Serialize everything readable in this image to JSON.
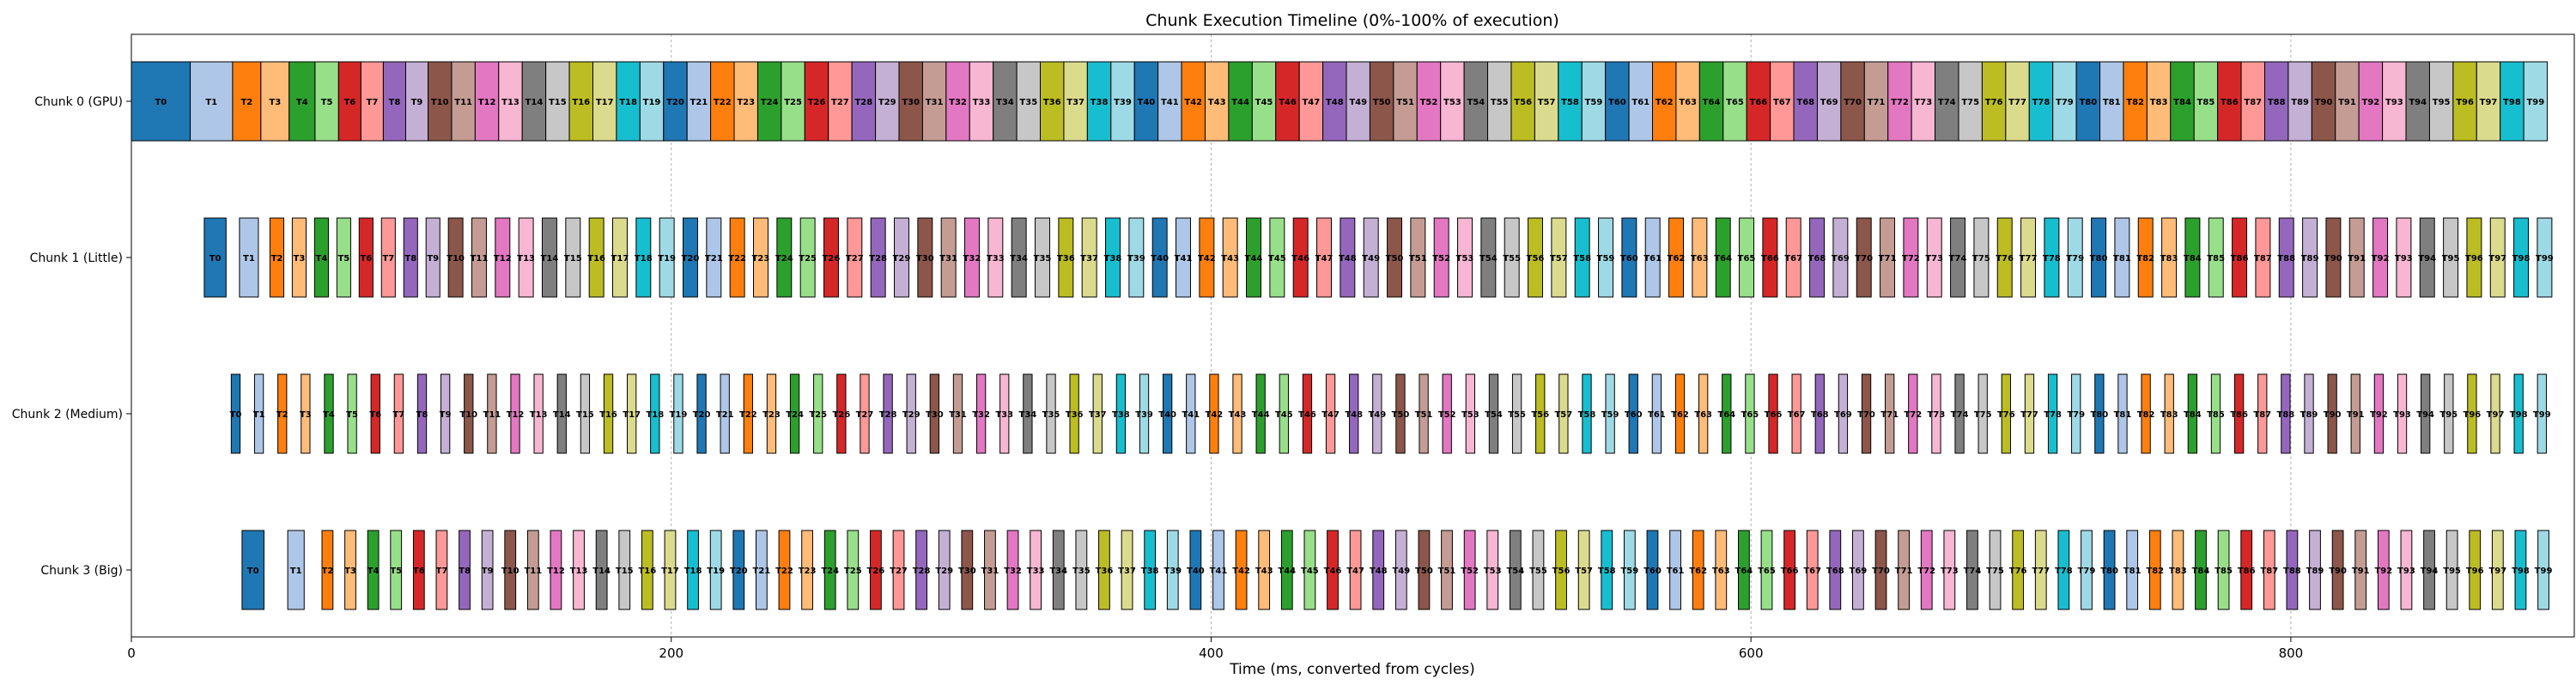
{
  "chart_data": {
    "type": "timeline",
    "title": "Chunk Execution Timeline (0%-100% of execution)",
    "xlabel": "Time (ms, converted from cycles)",
    "ylabel": "",
    "xlim": [
      0,
      905
    ],
    "xticks": [
      0,
      200,
      400,
      600,
      800
    ],
    "grid": "x",
    "palette": [
      "#1f77b4",
      "#aec7e8",
      "#ff7f0e",
      "#ffbb78",
      "#2ca02c",
      "#98df8a",
      "#d62728",
      "#ff9896",
      "#9467bd",
      "#c5b0d5",
      "#8c564b",
      "#c49c94",
      "#e377c2",
      "#f7b6d2",
      "#7f7f7f",
      "#c7c7c7",
      "#bcbd22",
      "#dbdb8d",
      "#17becf",
      "#9edae5"
    ],
    "rows": [
      {
        "name": "Chunk 0 (GPU)",
        "start": 0,
        "end": 895,
        "tasks": 100,
        "first_task_scale": [
          2.5,
          1.8,
          1.2,
          1.2,
          1.1,
          1.0,
          0.95,
          0.95,
          0.95,
          0.95
        ],
        "bar_fraction": 1.0
      },
      {
        "name": "Chunk 1 (Little)",
        "start": 27,
        "end": 900,
        "tasks": 100,
        "first_task_scale": [
          1.5,
          1.3,
          0.95,
          0.95,
          0.95,
          0.95,
          0.95,
          0.95,
          0.95,
          0.95
        ],
        "bar_fraction": 0.62
      },
      {
        "name": "Chunk 2 (Medium)",
        "start": 37,
        "end": 900,
        "tasks": 100,
        "first_task_scale": [
          1.0,
          1.0,
          1.0,
          1.0,
          1.0,
          1.0,
          1.0,
          1.0,
          1.0,
          1.0
        ],
        "bar_fraction": 0.38
      },
      {
        "name": "Chunk 3 (Big)",
        "start": 41,
        "end": 900,
        "tasks": 100,
        "first_task_scale": [
          2.0,
          1.5,
          1.0,
          1.0,
          1.0,
          1.0,
          1.0,
          1.0,
          1.0,
          1.0
        ],
        "bar_fraction": 0.48
      }
    ]
  }
}
